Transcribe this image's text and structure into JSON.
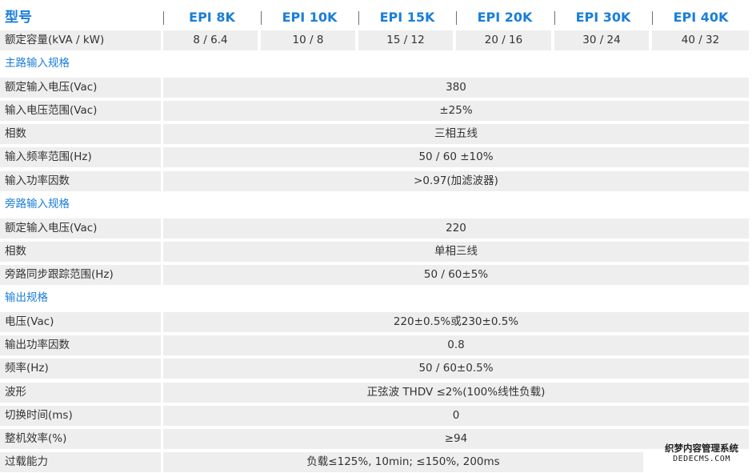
{
  "header": {
    "label": "型号",
    "models": [
      "EPI 8K",
      "EPI 10K",
      "EPI 15K",
      "EPI 20K",
      "EPI 30K",
      "EPI 40K"
    ]
  },
  "capacity": {
    "label": "额定容量(kVA / kW)",
    "values": [
      "8 / 6.4",
      "10 / 8",
      "15 / 12",
      "20 / 16",
      "30 / 24",
      "40 / 32"
    ]
  },
  "sections": {
    "main_input": "主路输入规格",
    "bypass_input": "旁路输入规格",
    "output": "输出规格"
  },
  "rows": [
    {
      "label": "额定输入电压(Vac)",
      "value": "380"
    },
    {
      "label": "输入电压范围(Vac)",
      "value": "±25%"
    },
    {
      "label": "相数",
      "value": "三相五线"
    },
    {
      "label": "输入频率范围(Hz)",
      "value": "50 / 60 ±10%"
    },
    {
      "label": "输入功率因数",
      "value": ">0.97(加滤波器)"
    },
    {
      "label": "额定输入电压(Vac)",
      "value": "220"
    },
    {
      "label": "相数",
      "value": "单相三线"
    },
    {
      "label": "旁路同步跟踪范围(Hz)",
      "value": "50 / 60±5%"
    },
    {
      "label": "电压(Vac)",
      "value": "220±0.5%或230±0.5%"
    },
    {
      "label": "输出功率因数",
      "value": "0.8"
    },
    {
      "label": "频率(Hz)",
      "value": "50 / 60±0.5%"
    },
    {
      "label": "波形",
      "value": "正弦波 THDV ≤2%(100%线性负载)"
    },
    {
      "label": "切换时间(ms)",
      "value": "0"
    },
    {
      "label": "整机效率(%)",
      "value": "≥94"
    },
    {
      "label": "过载能力",
      "value": "负载≤125%, 10min; ≤150%, 200ms"
    }
  ],
  "watermark": {
    "line1": "织梦内容管理系统",
    "line2": "DEDECMS.COM"
  }
}
